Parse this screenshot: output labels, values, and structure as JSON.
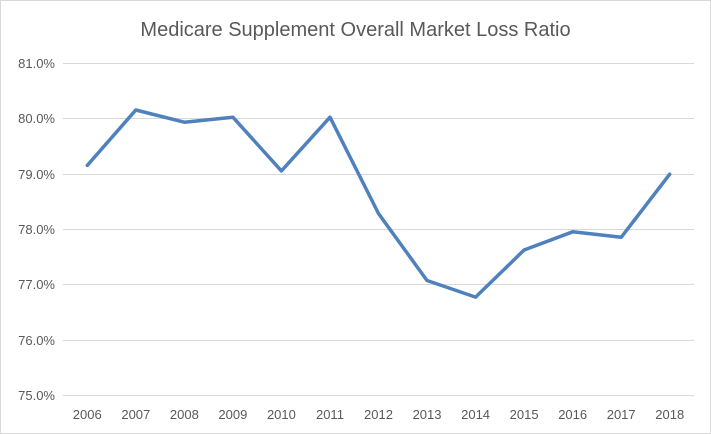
{
  "chart_data": {
    "type": "line",
    "title": "Medicare Supplement Overall Market Loss Ratio",
    "xlabel": "",
    "ylabel": "",
    "ylim": [
      75.0,
      81.0
    ],
    "y_ticks": [
      75.0,
      76.0,
      77.0,
      78.0,
      79.0,
      80.0,
      81.0
    ],
    "y_tick_labels": [
      "75.0%",
      "76.0%",
      "77.0%",
      "78.0%",
      "79.0%",
      "80.0%",
      "81.0%"
    ],
    "categories": [
      "2006",
      "2007",
      "2008",
      "2009",
      "2010",
      "2011",
      "2012",
      "2013",
      "2014",
      "2015",
      "2016",
      "2017",
      "2018"
    ],
    "series": [
      {
        "name": "Loss Ratio",
        "color": "#4f81bd",
        "values": [
          79.15,
          80.15,
          79.93,
          80.02,
          79.05,
          80.02,
          78.28,
          77.07,
          76.77,
          77.62,
          77.95,
          77.85,
          78.99
        ]
      }
    ],
    "grid": true,
    "gridline_color": "#d9d9d9",
    "legend": "none"
  }
}
